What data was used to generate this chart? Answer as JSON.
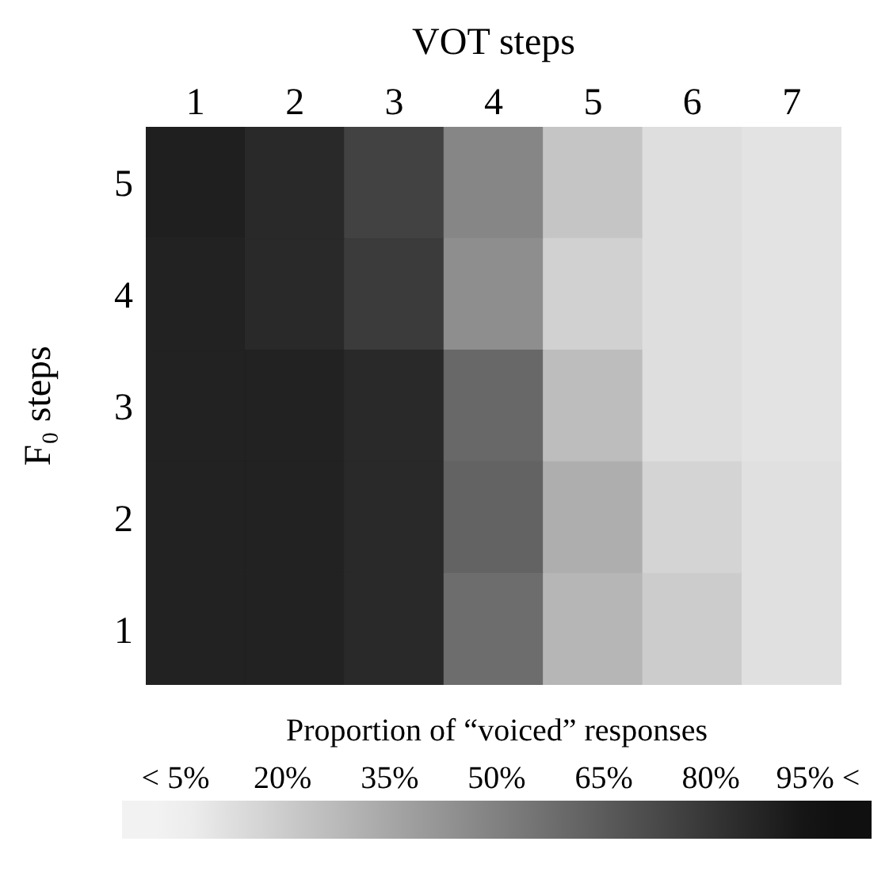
{
  "chart_data": {
    "type": "heatmap",
    "title": "VOT steps",
    "ylabel": "F₀ steps",
    "clabel": "Proportion of “voiced” responses",
    "categories": [
      "1",
      "2",
      "3",
      "4",
      "5",
      "6",
      "7"
    ],
    "y_categories": [
      "5",
      "4",
      "3",
      "2",
      "1"
    ],
    "cells": [
      [
        89,
        85,
        75,
        48,
        23,
        13,
        11
      ],
      [
        88,
        85,
        78,
        45,
        18,
        13,
        11
      ],
      [
        88,
        88,
        85,
        60,
        26,
        13,
        11
      ],
      [
        88,
        88,
        85,
        62,
        32,
        17,
        12
      ],
      [
        88,
        88,
        85,
        58,
        29,
        20,
        12
      ]
    ],
    "clim": [
      -2.5,
      102.5
    ],
    "cticks": [
      {
        "value": 5,
        "label": "< 5%"
      },
      {
        "value": 20,
        "label": "20%"
      },
      {
        "value": 35,
        "label": "35%"
      },
      {
        "value": 50,
        "label": "50%"
      },
      {
        "value": 65,
        "label": "65%"
      },
      {
        "value": 80,
        "label": "80%"
      },
      {
        "value": 95,
        "label": "95% <"
      }
    ]
  }
}
